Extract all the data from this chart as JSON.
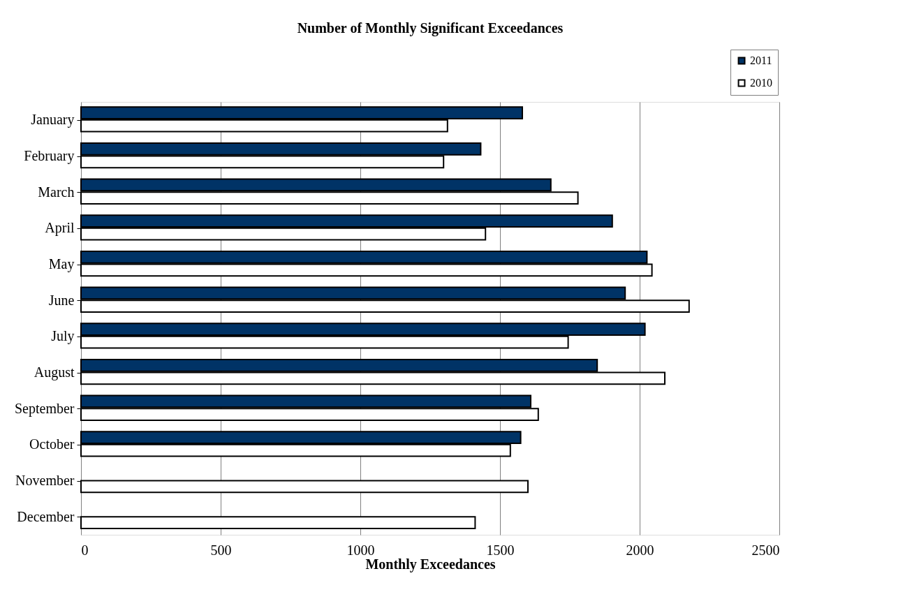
{
  "chart_data": {
    "type": "bar",
    "orientation": "horizontal",
    "title": "Number of Monthly Significant Exceedances",
    "xlabel": "Monthly Exceedances",
    "categories": [
      "January",
      "February",
      "March",
      "April",
      "May",
      "June",
      "July",
      "August",
      "September",
      "October",
      "November",
      "December"
    ],
    "series": [
      {
        "name": "2011",
        "color": "#003366",
        "values": [
          1580,
          1431,
          1682,
          1902,
          2026,
          1948,
          2019,
          1848,
          1610,
          1574,
          null,
          null
        ]
      },
      {
        "name": "2010",
        "color": "#ffffff",
        "values": [
          1312,
          1298,
          1779,
          1448,
          2044,
          2177,
          1744,
          2090,
          1637,
          1537,
          1600,
          1411
        ]
      }
    ],
    "xlim": [
      0,
      2500
    ],
    "xticks": [
      0,
      500,
      1000,
      1500,
      2000,
      2500
    ],
    "grid": "x",
    "legend": "top right"
  }
}
